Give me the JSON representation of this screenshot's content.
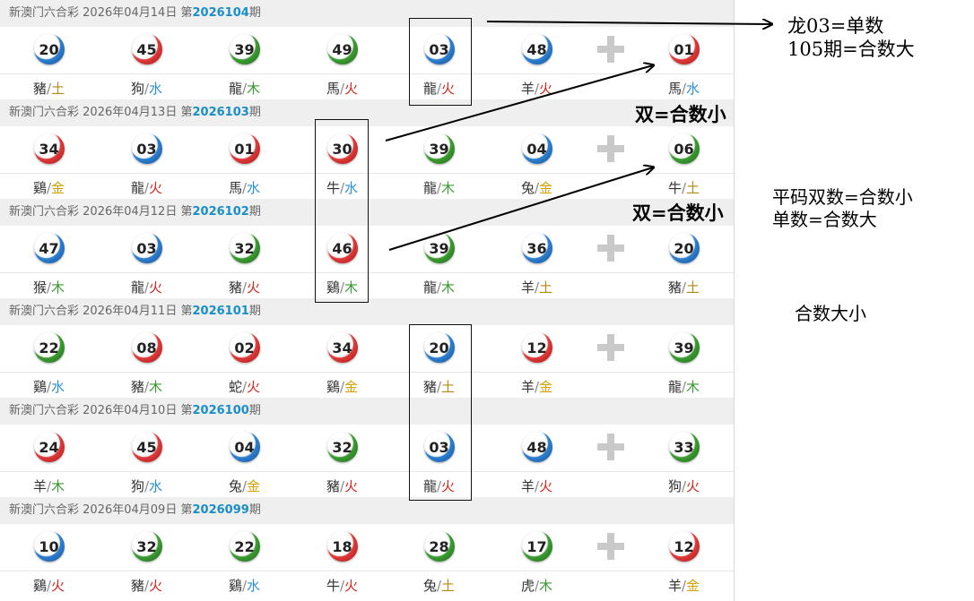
{
  "draws": [
    {
      "lottery": "新澳门六合彩",
      "date": "2026年04月14日",
      "issue_prefix": "第",
      "issue": "2026104",
      "issue_suffix": "期",
      "balls": [
        {
          "num": "20",
          "color": "blue",
          "zodiac": "豬",
          "element": "土",
          "el": "earth"
        },
        {
          "num": "45",
          "color": "red",
          "zodiac": "狗",
          "element": "水",
          "el": "water"
        },
        {
          "num": "39",
          "color": "green",
          "zodiac": "龍",
          "element": "木",
          "el": "wood"
        },
        {
          "num": "49",
          "color": "green",
          "zodiac": "馬",
          "element": "火",
          "el": "fire"
        },
        {
          "num": "03",
          "color": "blue",
          "zodiac": "龍",
          "element": "火",
          "el": "fire"
        },
        {
          "num": "48",
          "color": "blue",
          "zodiac": "羊",
          "element": "火",
          "el": "fire"
        }
      ],
      "special": {
        "num": "01",
        "color": "red",
        "zodiac": "馬",
        "element": "水",
        "el": "water"
      }
    },
    {
      "lottery": "新澳门六合彩",
      "date": "2026年04月13日",
      "issue_prefix": "第",
      "issue": "2026103",
      "issue_suffix": "期",
      "balls": [
        {
          "num": "34",
          "color": "red",
          "zodiac": "鷄",
          "element": "金",
          "el": "metal"
        },
        {
          "num": "03",
          "color": "blue",
          "zodiac": "龍",
          "element": "火",
          "el": "fire"
        },
        {
          "num": "01",
          "color": "red",
          "zodiac": "馬",
          "element": "水",
          "el": "water"
        },
        {
          "num": "30",
          "color": "red",
          "zodiac": "牛",
          "element": "水",
          "el": "water"
        },
        {
          "num": "39",
          "color": "green",
          "zodiac": "龍",
          "element": "木",
          "el": "wood"
        },
        {
          "num": "04",
          "color": "blue",
          "zodiac": "兔",
          "element": "金",
          "el": "metal"
        }
      ],
      "special": {
        "num": "06",
        "color": "green",
        "zodiac": "牛",
        "element": "土",
        "el": "earth"
      }
    },
    {
      "lottery": "新澳门六合彩",
      "date": "2026年04月12日",
      "issue_prefix": "第",
      "issue": "2026102",
      "issue_suffix": "期",
      "balls": [
        {
          "num": "47",
          "color": "blue",
          "zodiac": "猴",
          "element": "木",
          "el": "wood"
        },
        {
          "num": "03",
          "color": "blue",
          "zodiac": "龍",
          "element": "火",
          "el": "fire"
        },
        {
          "num": "32",
          "color": "green",
          "zodiac": "豬",
          "element": "火",
          "el": "fire"
        },
        {
          "num": "46",
          "color": "red",
          "zodiac": "鷄",
          "element": "木",
          "el": "wood"
        },
        {
          "num": "39",
          "color": "green",
          "zodiac": "龍",
          "element": "木",
          "el": "wood"
        },
        {
          "num": "36",
          "color": "blue",
          "zodiac": "羊",
          "element": "土",
          "el": "earth"
        }
      ],
      "special": {
        "num": "20",
        "color": "blue",
        "zodiac": "豬",
        "element": "土",
        "el": "earth"
      }
    },
    {
      "lottery": "新澳门六合彩",
      "date": "2026年04月11日",
      "issue_prefix": "第",
      "issue": "2026101",
      "issue_suffix": "期",
      "balls": [
        {
          "num": "22",
          "color": "green",
          "zodiac": "鷄",
          "element": "水",
          "el": "water"
        },
        {
          "num": "08",
          "color": "red",
          "zodiac": "豬",
          "element": "木",
          "el": "wood"
        },
        {
          "num": "02",
          "color": "red",
          "zodiac": "蛇",
          "element": "火",
          "el": "fire"
        },
        {
          "num": "34",
          "color": "red",
          "zodiac": "鷄",
          "element": "金",
          "el": "metal"
        },
        {
          "num": "20",
          "color": "blue",
          "zodiac": "豬",
          "element": "土",
          "el": "earth"
        },
        {
          "num": "12",
          "color": "red",
          "zodiac": "羊",
          "element": "金",
          "el": "metal"
        }
      ],
      "special": {
        "num": "39",
        "color": "green",
        "zodiac": "龍",
        "element": "木",
        "el": "wood"
      }
    },
    {
      "lottery": "新澳门六合彩",
      "date": "2026年04月10日",
      "issue_prefix": "第",
      "issue": "2026100",
      "issue_suffix": "期",
      "balls": [
        {
          "num": "24",
          "color": "red",
          "zodiac": "羊",
          "element": "木",
          "el": "wood"
        },
        {
          "num": "45",
          "color": "red",
          "zodiac": "狗",
          "element": "水",
          "el": "water"
        },
        {
          "num": "04",
          "color": "blue",
          "zodiac": "兔",
          "element": "金",
          "el": "metal"
        },
        {
          "num": "32",
          "color": "green",
          "zodiac": "豬",
          "element": "火",
          "el": "fire"
        },
        {
          "num": "03",
          "color": "blue",
          "zodiac": "龍",
          "element": "火",
          "el": "fire"
        },
        {
          "num": "48",
          "color": "blue",
          "zodiac": "羊",
          "element": "火",
          "el": "fire"
        }
      ],
      "special": {
        "num": "33",
        "color": "green",
        "zodiac": "狗",
        "element": "火",
        "el": "fire"
      }
    },
    {
      "lottery": "新澳门六合彩",
      "date": "2026年04月09日",
      "issue_prefix": "第",
      "issue": "2026099",
      "issue_suffix": "期",
      "balls": [
        {
          "num": "10",
          "color": "blue",
          "zodiac": "鷄",
          "element": "火",
          "el": "fire"
        },
        {
          "num": "32",
          "color": "green",
          "zodiac": "豬",
          "element": "火",
          "el": "fire"
        },
        {
          "num": "22",
          "color": "green",
          "zodiac": "鷄",
          "element": "水",
          "el": "water"
        },
        {
          "num": "18",
          "color": "red",
          "zodiac": "牛",
          "element": "火",
          "el": "fire"
        },
        {
          "num": "28",
          "color": "green",
          "zodiac": "兔",
          "element": "土",
          "el": "earth"
        },
        {
          "num": "17",
          "color": "green",
          "zodiac": "虎",
          "element": "木",
          "el": "wood"
        }
      ],
      "special": {
        "num": "12",
        "color": "red",
        "zodiac": "羊",
        "element": "金",
        "el": "metal"
      }
    }
  ],
  "annotations": {
    "note1_line1": "龙03=单数",
    "note1_line2": "105期=合数大",
    "note2": "双=合数小",
    "note3": "双=合数小",
    "note4_line1": "平码双数=合数小",
    "note4_line2": "单数=合数大",
    "note5": "合数大小"
  },
  "colors": {
    "issue_blue": "#1a8ec8",
    "ball_red": "#e03a3a",
    "ball_blue": "#2d7fd1",
    "ball_green": "#3c9c32",
    "header_bg": "#efefef"
  }
}
